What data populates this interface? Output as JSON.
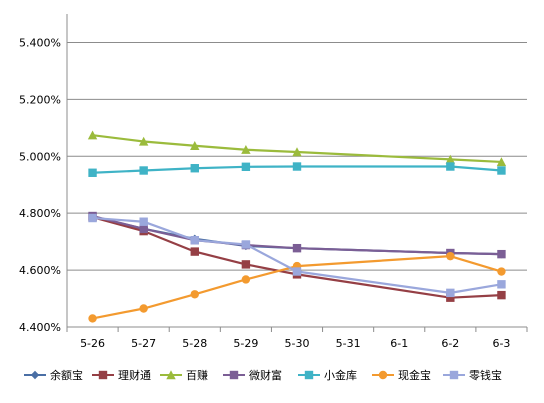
{
  "chart_data": {
    "type": "line",
    "x": [
      "5-26",
      "5-27",
      "5-28",
      "5-29",
      "5-30",
      "5-31",
      "6-1",
      "6-2",
      "6-3"
    ],
    "ylim": [
      4.4,
      5.5
    ],
    "yticks": [
      4.4,
      4.6,
      4.8,
      5.0,
      5.2,
      5.4
    ],
    "ytick_labels": [
      "4.400%",
      "4.600%",
      "4.800%",
      "5.000%",
      "5.200%",
      "5.400%"
    ],
    "grid": true,
    "legend_position": "bottom",
    "series": [
      {
        "name": "余额宝",
        "color": "#4a6fa5",
        "marker": "diamond",
        "values": [
          4.787,
          4.745,
          4.71,
          4.685,
          4.677,
          null,
          null,
          4.66,
          4.656
        ]
      },
      {
        "name": "理财通",
        "color": "#953f45",
        "marker": "square",
        "values": [
          4.786,
          4.737,
          4.665,
          4.62,
          4.585,
          null,
          null,
          4.503,
          4.512
        ]
      },
      {
        "name": "百赚",
        "color": "#9bbb3c",
        "marker": "triangle",
        "values": [
          5.074,
          5.052,
          5.037,
          5.023,
          5.015,
          null,
          null,
          4.989,
          4.98
        ]
      },
      {
        "name": "微财富",
        "color": "#7b5e95",
        "marker": "square",
        "values": [
          4.79,
          4.745,
          4.705,
          4.688,
          4.677,
          null,
          null,
          4.66,
          4.656
        ]
      },
      {
        "name": "小金库",
        "color": "#3fb3c6",
        "marker": "square",
        "values": [
          4.942,
          4.95,
          4.958,
          4.963,
          4.964,
          null,
          null,
          4.964,
          4.95
        ]
      },
      {
        "name": "现金宝",
        "color": "#f39a2f",
        "marker": "circle",
        "values": [
          4.43,
          4.465,
          4.515,
          4.567,
          4.614,
          null,
          null,
          4.649,
          4.595
        ]
      },
      {
        "name": "零钱宝",
        "color": "#9aa7dc",
        "marker": "square",
        "values": [
          4.783,
          4.77,
          4.705,
          4.69,
          4.595,
          null,
          null,
          4.52,
          4.55
        ]
      }
    ]
  }
}
